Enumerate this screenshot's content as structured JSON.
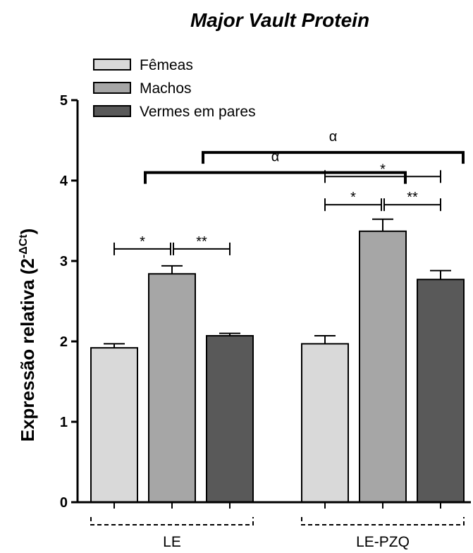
{
  "chart_data": {
    "type": "bar",
    "title": "Major Vault Protein",
    "ylabel": "Expressão relativa (2",
    "ylabel_sup": "-ΔCt",
    "ylabel_close": ")",
    "ylim": [
      0,
      5
    ],
    "yticks": [
      "0",
      "1",
      "2",
      "3",
      "4",
      "5"
    ],
    "groups": [
      "LE",
      "LE-PZQ"
    ],
    "series": [
      {
        "name": "Fêmeas",
        "color": "#d9d9d9",
        "values": [
          1.92,
          1.97
        ],
        "errors": [
          0.05,
          0.1
        ]
      },
      {
        "name": "Machos",
        "color": "#a6a6a6",
        "values": [
          2.84,
          3.37
        ],
        "errors": [
          0.1,
          0.15
        ]
      },
      {
        "name": "Vermes em pares",
        "color": "#595959",
        "values": [
          2.07,
          2.77
        ],
        "errors": [
          0.03,
          0.11
        ]
      }
    ],
    "significance": [
      {
        "group": 0,
        "from": 0,
        "to": 1,
        "label": "*",
        "y": 3.15
      },
      {
        "group": 0,
        "from": 1,
        "to": 2,
        "label": "**",
        "y": 3.15
      },
      {
        "group": 1,
        "from": 0,
        "to": 1,
        "label": "*",
        "y": 3.7
      },
      {
        "group": 1,
        "from": 1,
        "to": 2,
        "label": "**",
        "y": 3.7
      },
      {
        "group": 1,
        "from": 0,
        "to": 2,
        "label": "*",
        "y": 4.05
      }
    ],
    "cross_comparisons": [
      {
        "series": 1,
        "label": "α",
        "y": 4.1
      },
      {
        "series": 2,
        "label": "α",
        "y": 4.35
      }
    ],
    "legend_position": "top-left"
  }
}
